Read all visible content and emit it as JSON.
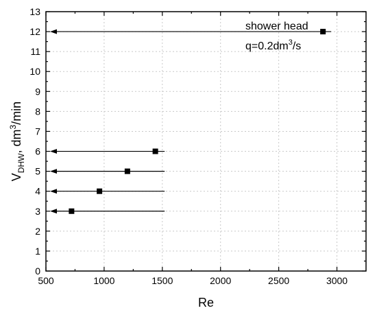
{
  "chart_data": {
    "type": "scatter",
    "xlabel": "Re",
    "ylabel": {
      "prefix": "V",
      "subscript": "DHW",
      "mid": ", dm",
      "superscript": "3",
      "suffix": "/min"
    },
    "xlim": [
      500,
      3250
    ],
    "ylim": [
      0,
      13
    ],
    "xticks": [
      500,
      1000,
      1500,
      2000,
      2500,
      3000
    ],
    "yticks": [
      0,
      1,
      2,
      3,
      4,
      5,
      6,
      7,
      8,
      9,
      10,
      11,
      12,
      13
    ],
    "x_minor_step": 250,
    "y_minor_step": 0.5,
    "grid": true,
    "points": [
      {
        "x": 720,
        "y": 3,
        "line_from": 500,
        "line_to": 1520
      },
      {
        "x": 960,
        "y": 4,
        "line_from": 500,
        "line_to": 1520
      },
      {
        "x": 1200,
        "y": 5,
        "line_from": 500,
        "line_to": 1520
      },
      {
        "x": 1440,
        "y": 6,
        "line_from": 500,
        "line_to": 1520
      },
      {
        "x": 2880,
        "y": 12,
        "line_from": 500,
        "line_to": 2950
      }
    ],
    "annotation": {
      "line1": "shower head",
      "line2_prefix": "q=0.2dm",
      "line2_sup": "3",
      "line2_suffix": "/s"
    }
  }
}
